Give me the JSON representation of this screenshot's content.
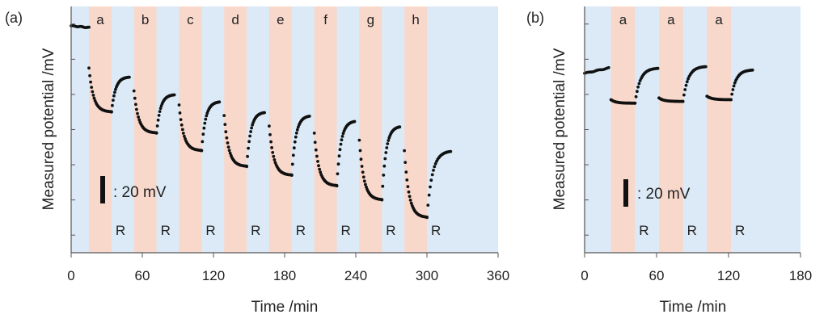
{
  "colors": {
    "blue_band": "#dbeaf6",
    "pink_band": "#f9d8cc",
    "point": "#111111",
    "axis": "#555555"
  },
  "chart_data": [
    {
      "type": "scatter",
      "panel_label": "(a)",
      "xlabel": "Time /min",
      "ylabel": "Measured potential /mV",
      "xlim": [
        0,
        360
      ],
      "ylim": [
        -140,
        0
      ],
      "y_tick_values": [
        -130,
        -110,
        -90,
        -70,
        -50,
        -30,
        -10
      ],
      "xticks": [
        "0",
        "60",
        "120",
        "180",
        "240",
        "300",
        "360"
      ],
      "scale_bar": {
        "label": ": 20 mV",
        "value_mV": 20
      },
      "recovery_label": "R",
      "background_span": [
        0,
        360
      ],
      "exposure_bands": [
        {
          "label": "a",
          "start": 15,
          "end": 34
        },
        {
          "label": "b",
          "start": 53,
          "end": 72
        },
        {
          "label": "c",
          "start": 91,
          "end": 110
        },
        {
          "label": "d",
          "start": 129,
          "end": 148
        },
        {
          "label": "e",
          "start": 167,
          "end": 186
        },
        {
          "label": "f",
          "start": 205,
          "end": 224
        },
        {
          "label": "g",
          "start": 243,
          "end": 262
        },
        {
          "label": "h",
          "start": 281,
          "end": 300
        }
      ],
      "series": [
        {
          "baseline": [
            0,
            -11,
            15,
            -12
          ],
          "cycles": [
            {
              "exp_start": 15,
              "exp_end": 34,
              "exp_from": -35,
              "exp_to": -60,
              "rec_end": 49,
              "rec_to": -40
            },
            {
              "exp_start": 53,
              "exp_end": 72,
              "exp_from": -48,
              "exp_to": -72,
              "rec_end": 87,
              "rec_to": -50
            },
            {
              "exp_start": 91,
              "exp_end": 110,
              "exp_from": -56,
              "exp_to": -82,
              "rec_end": 125,
              "rec_to": -54
            },
            {
              "exp_start": 129,
              "exp_end": 148,
              "exp_from": -62,
              "exp_to": -91,
              "rec_end": 163,
              "rec_to": -60
            },
            {
              "exp_start": 167,
              "exp_end": 186,
              "exp_from": -68,
              "exp_to": -96,
              "rec_end": 201,
              "rec_to": -62
            },
            {
              "exp_start": 205,
              "exp_end": 224,
              "exp_from": -72,
              "exp_to": -102,
              "rec_end": 239,
              "rec_to": -65
            },
            {
              "exp_start": 243,
              "exp_end": 262,
              "exp_from": -76,
              "exp_to": -110,
              "rec_end": 277,
              "rec_to": -68
            },
            {
              "exp_start": 281,
              "exp_end": 300,
              "exp_from": -82,
              "exp_to": -120,
              "rec_end": 320,
              "rec_to": -82
            }
          ]
        }
      ]
    },
    {
      "type": "scatter",
      "panel_label": "(b)",
      "xlabel": "Time /min",
      "ylabel": "Measured potential /mV",
      "xlim": [
        0,
        180
      ],
      "ylim": [
        -140,
        0
      ],
      "y_tick_values": [
        -130,
        -110,
        -90,
        -70,
        -50,
        -30,
        -10
      ],
      "xticks": [
        "0",
        "60",
        "120",
        "180"
      ],
      "scale_bar": {
        "label": ": 20 mV",
        "value_mV": 20
      },
      "recovery_label": "R",
      "background_span": [
        0,
        180
      ],
      "exposure_bands": [
        {
          "label": "a",
          "start": 22,
          "end": 42
        },
        {
          "label": "a",
          "start": 62,
          "end": 82
        },
        {
          "label": "a",
          "start": 102,
          "end": 122
        }
      ],
      "series": [
        {
          "baseline": [
            0,
            -38,
            20,
            -35
          ],
          "cycles": [
            {
              "exp_start": 22,
              "exp_end": 42,
              "exp_from": -53,
              "exp_to": -55,
              "rec_end": 61,
              "rec_to": -35
            },
            {
              "exp_start": 62,
              "exp_end": 82,
              "exp_from": -52,
              "exp_to": -54,
              "rec_end": 101,
              "rec_to": -34
            },
            {
              "exp_start": 102,
              "exp_end": 122,
              "exp_from": -51,
              "exp_to": -53,
              "rec_end": 140,
              "rec_to": -36
            }
          ]
        }
      ]
    }
  ]
}
